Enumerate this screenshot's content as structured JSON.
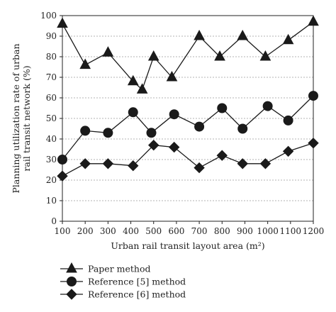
{
  "chart_data": {
    "type": "line",
    "xlabel": "Urban rail transit layout area (m²)",
    "ylabel": "Planning utilization rate of urban rail transit network (%)",
    "ylabel_lines": [
      "Planning utilization rate of urban",
      "rail transit network (%)"
    ],
    "xlim": [
      100,
      1200
    ],
    "ylim": [
      0,
      100
    ],
    "x_ticks": [
      100,
      200,
      300,
      400,
      500,
      600,
      700,
      800,
      900,
      1000,
      1100,
      1200
    ],
    "y_ticks": [
      0,
      10,
      20,
      30,
      40,
      50,
      60,
      70,
      80,
      90,
      100
    ],
    "grid": true,
    "legend_position": "bottom",
    "series": [
      {
        "name": "Paper method",
        "marker": "triangle",
        "color": "#1a1a1a",
        "points": [
          {
            "x": 100,
            "y": 96
          },
          {
            "x": 200,
            "y": 76
          },
          {
            "x": 300,
            "y": 82
          },
          {
            "x": 410,
            "y": 68
          },
          {
            "x": 450,
            "y": 64
          },
          {
            "x": 500,
            "y": 80
          },
          {
            "x": 580,
            "y": 70
          },
          {
            "x": 700,
            "y": 90
          },
          {
            "x": 790,
            "y": 80
          },
          {
            "x": 890,
            "y": 90
          },
          {
            "x": 990,
            "y": 80
          },
          {
            "x": 1090,
            "y": 88
          },
          {
            "x": 1200,
            "y": 97
          }
        ]
      },
      {
        "name": "Reference [5] method",
        "marker": "circle",
        "color": "#1a1a1a",
        "points": [
          {
            "x": 100,
            "y": 30
          },
          {
            "x": 200,
            "y": 44
          },
          {
            "x": 300,
            "y": 43
          },
          {
            "x": 410,
            "y": 53
          },
          {
            "x": 490,
            "y": 43
          },
          {
            "x": 590,
            "y": 52
          },
          {
            "x": 700,
            "y": 46
          },
          {
            "x": 800,
            "y": 55
          },
          {
            "x": 890,
            "y": 45
          },
          {
            "x": 1000,
            "y": 56
          },
          {
            "x": 1090,
            "y": 49
          },
          {
            "x": 1200,
            "y": 61
          }
        ]
      },
      {
        "name": "Reference [6] method",
        "marker": "diamond",
        "color": "#1a1a1a",
        "points": [
          {
            "x": 100,
            "y": 22
          },
          {
            "x": 200,
            "y": 28
          },
          {
            "x": 300,
            "y": 28
          },
          {
            "x": 410,
            "y": 27
          },
          {
            "x": 500,
            "y": 37
          },
          {
            "x": 590,
            "y": 36
          },
          {
            "x": 700,
            "y": 26
          },
          {
            "x": 800,
            "y": 32
          },
          {
            "x": 890,
            "y": 28
          },
          {
            "x": 990,
            "y": 28
          },
          {
            "x": 1090,
            "y": 34
          },
          {
            "x": 1200,
            "y": 38
          }
        ]
      }
    ]
  }
}
